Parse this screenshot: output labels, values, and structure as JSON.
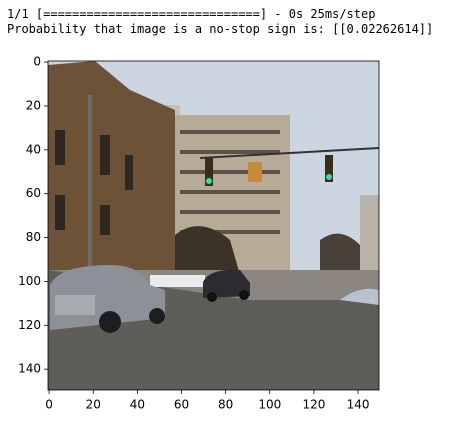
{
  "output": {
    "lines": [
      "1/1 [==============================] - 0s 25ms/step",
      "Probability that image is a no-stop sign is: [[0.02262614]]"
    ]
  },
  "plot": {
    "xlim": [
      -0.5,
      149.5
    ],
    "ylim": [
      149.5,
      -0.5
    ],
    "xticks": [
      0,
      20,
      40,
      60,
      80,
      100,
      120,
      140
    ],
    "yticks": [
      0,
      20,
      40,
      60,
      80,
      100,
      120,
      140
    ]
  }
}
